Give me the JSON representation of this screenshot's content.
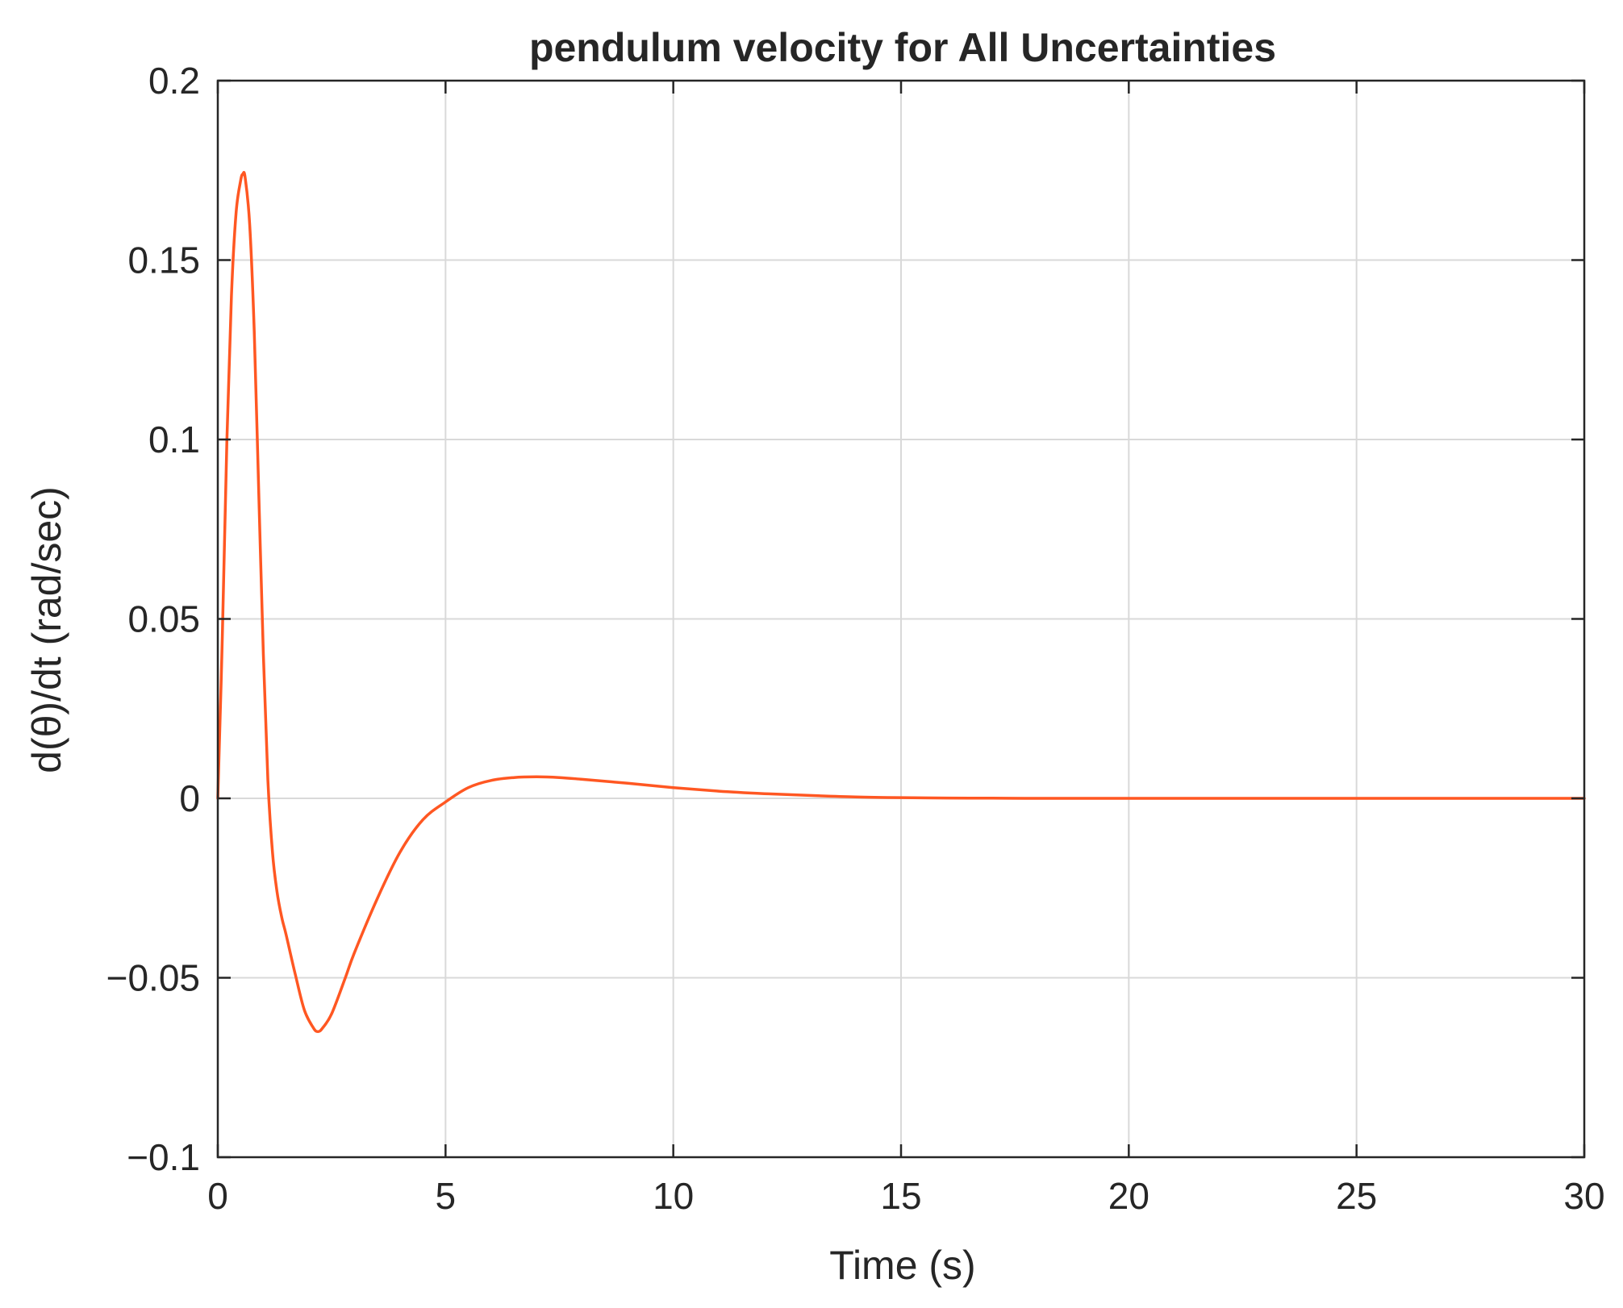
{
  "chart_data": {
    "type": "line",
    "title": "pendulum velocity for All Uncertainties",
    "xlabel": "Time (s)",
    "ylabel": "d(θ)/dt (rad/sec)",
    "xlim": [
      0,
      30
    ],
    "ylim": [
      -0.1,
      0.2
    ],
    "x_ticks": [
      0,
      5,
      10,
      15,
      20,
      25,
      30
    ],
    "x_tick_labels": [
      "0",
      "5",
      "10",
      "15",
      "20",
      "25",
      "30"
    ],
    "y_ticks": [
      -0.1,
      -0.05,
      0,
      0.05,
      0.1,
      0.15,
      0.2
    ],
    "y_tick_labels": [
      "−0.1",
      "−0.05",
      "0",
      "0.05",
      "0.1",
      "0.15",
      "0.2"
    ],
    "grid": true,
    "line_color": "#ff5722",
    "series": [
      {
        "x": [
          0,
          0.1,
          0.2,
          0.3,
          0.4,
          0.5,
          0.55,
          0.6,
          0.7,
          0.8,
          0.9,
          1.0,
          1.1,
          1.2,
          1.3,
          1.4,
          1.5,
          1.7,
          1.9,
          2.1,
          2.2,
          2.3,
          2.5,
          2.8,
          3.0,
          3.5,
          4.0,
          4.5,
          5.0,
          5.5,
          6.0,
          6.5,
          7.0,
          7.5,
          8.0,
          9.0,
          10.0,
          11.0,
          12.0,
          13.0,
          14.0,
          15.0,
          16.0,
          17.0,
          18.0,
          20.0,
          22.0,
          25.0,
          28.0,
          30.0
        ],
        "y": [
          0,
          0.045,
          0.1,
          0.14,
          0.163,
          0.172,
          0.174,
          0.173,
          0.16,
          0.13,
          0.085,
          0.04,
          0.005,
          -0.015,
          -0.026,
          -0.033,
          -0.038,
          -0.049,
          -0.059,
          -0.064,
          -0.065,
          -0.064,
          -0.06,
          -0.05,
          -0.043,
          -0.028,
          -0.015,
          -0.006,
          -0.001,
          0.003,
          0.005,
          0.0058,
          0.006,
          0.0058,
          0.0053,
          0.0042,
          0.003,
          0.002,
          0.0013,
          0.0008,
          0.0004,
          0.0002,
          0.0001,
          5e-05,
          0,
          0,
          0,
          0,
          0,
          0
        ]
      }
    ]
  }
}
